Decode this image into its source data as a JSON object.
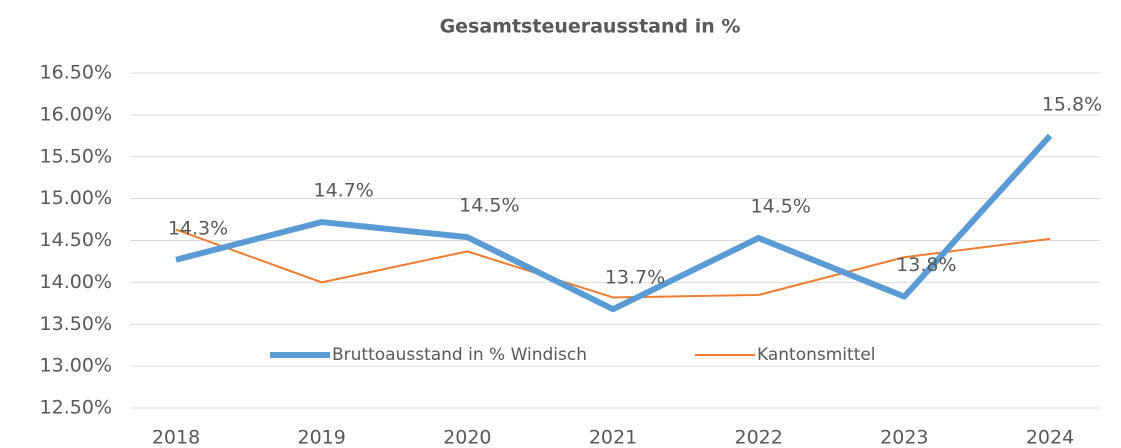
{
  "chart_data": {
    "type": "line",
    "title": "Gesamtsteuerausstand in %",
    "categories": [
      "2018",
      "2019",
      "2020",
      "2021",
      "2022",
      "2023",
      "2024"
    ],
    "series": [
      {
        "name": "Bruttoausstand in % Windisch",
        "color": "#5b9bd5",
        "values": [
          14.27,
          14.72,
          14.54,
          13.68,
          14.53,
          13.83,
          15.75
        ],
        "value_labels": [
          "14.3%",
          "14.7%",
          "14.5%",
          "13.7%",
          "14.5%",
          "13.8%",
          "15.8%"
        ]
      },
      {
        "name": "Kantonsmittel",
        "color": "#ed7d31",
        "values": [
          14.63,
          14.0,
          14.37,
          13.82,
          13.85,
          14.3,
          14.52
        ]
      }
    ],
    "ylim": [
      12.5,
      16.5
    ],
    "yticks": [
      {
        "value": 12.5,
        "label": "12.50%"
      },
      {
        "value": 13,
        "label": "13.00%"
      },
      {
        "value": 13.5,
        "label": "13.50%"
      },
      {
        "value": 14,
        "label": "14.00%"
      },
      {
        "value": 14.5,
        "label": "14.50%"
      },
      {
        "value": 15,
        "label": "15.00%"
      },
      {
        "value": 15.5,
        "label": "15.50%"
      },
      {
        "value": 16,
        "label": "16.00%"
      },
      {
        "value": 16.5,
        "label": "16.50%"
      }
    ],
    "grid": true,
    "legend": "bottom"
  }
}
